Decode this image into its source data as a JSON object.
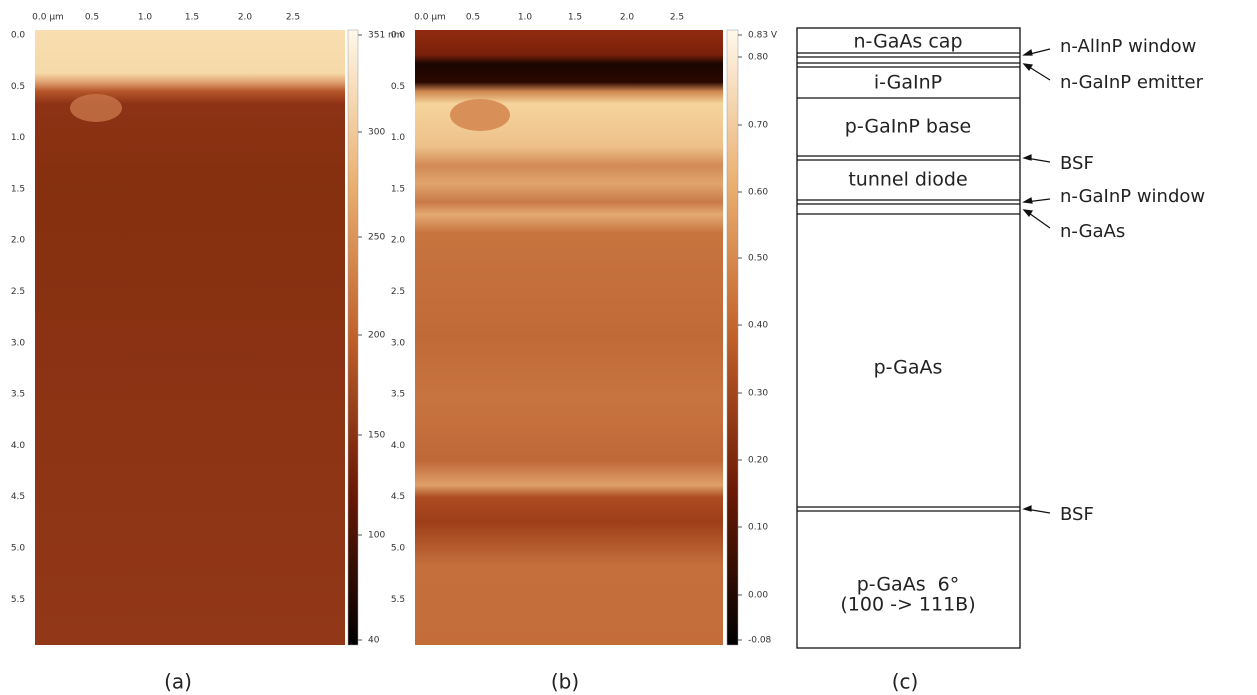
{
  "panels": [
    {
      "label": "(a)",
      "x_ticks": [
        "0.0 µm",
        "0.5",
        "1.0",
        "1.5",
        "2.0",
        "2.5"
      ],
      "y_ticks": [
        "0.0",
        "0.5",
        "1.0",
        "1.5",
        "2.0",
        "2.5",
        "3.0",
        "3.5",
        "4.0",
        "4.5",
        "5.0",
        "5.5"
      ],
      "colorbar_ticks": [
        "351 nm",
        "300",
        "250",
        "200",
        "150",
        "100",
        "40"
      ]
    },
    {
      "label": "(b)",
      "x_ticks": [
        "0.0 µm",
        "0.5",
        "1.0",
        "1.5",
        "2.0",
        "2.5"
      ],
      "y_ticks": [
        "0.0",
        "0.5",
        "1.0",
        "1.5",
        "2.0",
        "2.5",
        "3.0",
        "3.5",
        "4.0",
        "4.5",
        "5.0",
        "5.5"
      ],
      "colorbar_ticks": [
        "0.83 V",
        "0.80",
        "0.70",
        "0.60",
        "0.50",
        "0.40",
        "0.30",
        "0.20",
        "0.10",
        "0.00",
        "-0.08"
      ]
    }
  ],
  "diagram": {
    "label": "(c)",
    "layers": [
      "n-GaAs cap",
      "i-GaInP",
      "p-GaInP base",
      "tunnel diode",
      "p-GaAs",
      "p-GaAs  6°",
      "(100 -> 111B)"
    ],
    "annotations": [
      "n-AlInP window",
      "n-GaInP emitter",
      "BSF",
      "n-GaInP window",
      "n-GaAs",
      "BSF"
    ]
  }
}
